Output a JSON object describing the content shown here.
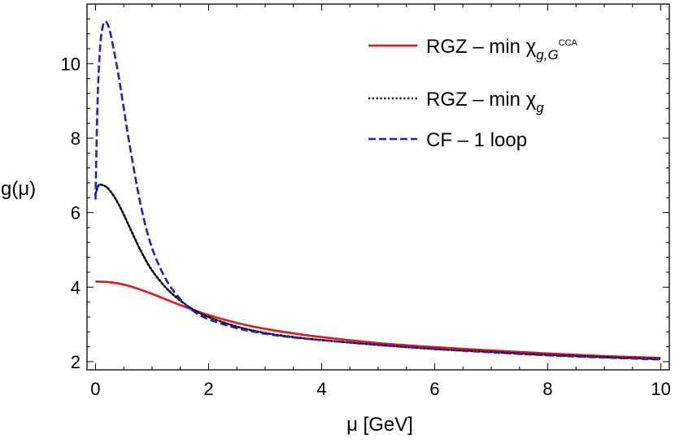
{
  "chart_data": {
    "type": "line",
    "xlabel": "μ [GeV]",
    "ylabel": "g(μ)",
    "xlim": [
      -0.15,
      10.15
    ],
    "ylim": [
      1.78,
      11.6
    ],
    "xticks": [
      0,
      2,
      4,
      6,
      8,
      10
    ],
    "yticks": [
      2,
      4,
      6,
      8,
      10
    ],
    "x_minor_step": 0.5,
    "y_minor_step": 0.4,
    "grid": false,
    "frame": true,
    "legend_position": "top-right",
    "series": [
      {
        "name": "RGZ – min χg,G^CCA",
        "legend_main": "RGZ – min χ",
        "legend_sub": "g,G",
        "legend_sup": "CCA",
        "color": "#e8161b",
        "style": "solid",
        "x": [
          0,
          0.2,
          0.4,
          0.6,
          0.8,
          1.0,
          1.25,
          1.5,
          1.75,
          2.0,
          2.5,
          3.0,
          3.5,
          4.0,
          5.0,
          6.0,
          7.0,
          8.0,
          9.0,
          10.0
        ],
        "y": [
          4.15,
          4.14,
          4.1,
          4.03,
          3.93,
          3.82,
          3.67,
          3.52,
          3.38,
          3.25,
          3.04,
          2.88,
          2.76,
          2.66,
          2.5,
          2.39,
          2.3,
          2.22,
          2.15,
          2.1
        ]
      },
      {
        "name": "RGZ – min χg",
        "legend_main": "RGZ – min χ",
        "legend_sub": "g",
        "legend_sup": "",
        "color": "#000000",
        "style": "dotted",
        "x": [
          0,
          0.05,
          0.1,
          0.2,
          0.3,
          0.4,
          0.5,
          0.6,
          0.8,
          1.0,
          1.25,
          1.5,
          1.75,
          2.0,
          2.5,
          3.0,
          3.5,
          4.0,
          5.0,
          6.0,
          7.0,
          8.0,
          9.0,
          10.0
        ],
        "y": [
          6.5,
          6.72,
          6.75,
          6.68,
          6.5,
          6.25,
          5.95,
          5.62,
          4.98,
          4.45,
          3.98,
          3.64,
          3.38,
          3.2,
          2.94,
          2.77,
          2.66,
          2.58,
          2.45,
          2.34,
          2.26,
          2.18,
          2.12,
          2.07
        ]
      },
      {
        "name": "CF – 1 loop",
        "legend_main": "CF – 1 loop",
        "legend_sub": "",
        "legend_sup": "",
        "color": "#1f1fd6",
        "style": "dashed",
        "x": [
          0,
          0.03,
          0.06,
          0.1,
          0.15,
          0.2,
          0.25,
          0.3,
          0.4,
          0.5,
          0.6,
          0.8,
          1.0,
          1.25,
          1.5,
          1.75,
          2.0,
          2.5,
          3.0,
          3.5,
          4.0,
          5.0,
          6.0,
          7.0,
          8.0,
          9.0,
          10.0
        ],
        "y": [
          6.35,
          8.6,
          9.9,
          10.75,
          11.1,
          11.1,
          10.9,
          10.55,
          9.75,
          8.8,
          7.85,
          6.2,
          5.05,
          4.2,
          3.68,
          3.34,
          3.14,
          2.9,
          2.75,
          2.65,
          2.58,
          2.45,
          2.34,
          2.25,
          2.17,
          2.11,
          2.06
        ]
      }
    ]
  }
}
